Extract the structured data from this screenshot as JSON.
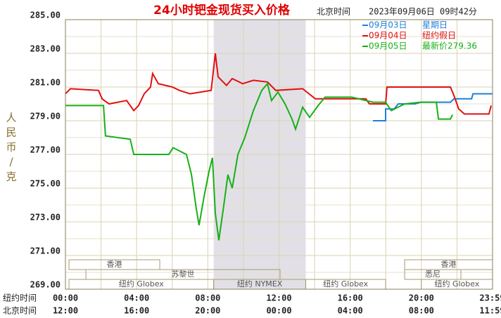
{
  "chart_data": {
    "type": "line",
    "title": "24小时钯金现货买入价格",
    "timezone_label": "北京时间",
    "timestamp": "2023年09月06日 09时42分",
    "y_label": "人民币/克",
    "xlim": [
      0,
      24
    ],
    "ylim": [
      269,
      285
    ],
    "yticks": [
      {
        "value": 269,
        "label": "269.00"
      },
      {
        "value": 271,
        "label": "271.00"
      },
      {
        "value": 273,
        "label": "273.00"
      },
      {
        "value": 275,
        "label": "275.00"
      },
      {
        "value": 277,
        "label": "277.00"
      },
      {
        "value": 279,
        "label": "279.00"
      },
      {
        "value": 281,
        "label": "281.00"
      },
      {
        "value": 283,
        "label": "283.00"
      },
      {
        "value": 285,
        "label": "285.00"
      }
    ],
    "x_axis_rows": [
      {
        "name": "纽约时间",
        "ticks": [
          {
            "value": 0,
            "label": "00:00"
          },
          {
            "value": 4,
            "label": "04:00"
          },
          {
            "value": 8,
            "label": "08:00"
          },
          {
            "value": 12,
            "label": "12:00"
          },
          {
            "value": 16,
            "label": "16:00"
          },
          {
            "value": 20,
            "label": "20:00"
          },
          {
            "value": 23.98,
            "label": "23:59"
          }
        ]
      },
      {
        "name": "北京时间",
        "ticks": [
          {
            "value": 0,
            "label": "12:00"
          },
          {
            "value": 4,
            "label": "16:00"
          },
          {
            "value": 8,
            "label": "20:00"
          },
          {
            "value": 12,
            "label": "00:00"
          },
          {
            "value": 16,
            "label": "04:00"
          },
          {
            "value": 20,
            "label": "08:00"
          },
          {
            "value": 23.98,
            "label": "11:59"
          }
        ]
      }
    ],
    "grid": true,
    "highlight": {
      "start": 8.33,
      "end": 13.5
    },
    "sessions": [
      {
        "label": "香港",
        "start": 0.2,
        "end": 5.3
      },
      {
        "label": "苏黎世",
        "start": 1.15,
        "end": 12.06
      },
      {
        "label": "纽约 Globex",
        "start": 0.2,
        "end": 8.33
      },
      {
        "label": "纽约 NYMEX",
        "start": 8.33,
        "end": 13.5
      },
      {
        "label": "纽约 Globex",
        "start": 13.5,
        "end": 17.99
      },
      {
        "label": "悉尼",
        "start": 19.06,
        "end": 22.22
      },
      {
        "label": "香港",
        "start": 19.06,
        "end": 24
      },
      {
        "label": "纽约 Globex",
        "start": 20.0,
        "end": 24
      }
    ],
    "series": [
      {
        "name": "09月03日",
        "note": "星期日",
        "color": "#1e7fd8",
        "x": [
          17.28,
          17.99,
          17.99,
          18.47,
          18.7,
          19.65,
          19.97,
          21.63,
          21.83,
          22.82,
          22.9,
          24
        ],
        "values": [
          279.0,
          279.0,
          279.7,
          279.7,
          280.0,
          280.0,
          280.1,
          280.1,
          280.3,
          280.3,
          280.6,
          280.6
        ]
      },
      {
        "name": "09月04日",
        "note": "纽约假日",
        "color": "#e01010",
        "x": [
          0,
          0.28,
          1.86,
          2.06,
          2.45,
          3.44,
          3.84,
          4.11,
          4.43,
          4.78,
          4.9,
          5.22,
          6.01,
          6.41,
          7.0,
          8.19,
          8.42,
          8.58,
          9.05,
          9.37,
          9.96,
          10.56,
          11.35,
          11.82,
          13.33,
          14.04,
          16.88,
          17.08,
          17.99,
          18.07,
          21.63,
          21.83,
          22.1,
          22.42,
          23.8,
          23.92
        ],
        "values": [
          280.6,
          280.9,
          280.8,
          280.3,
          280.0,
          280.2,
          279.6,
          279.9,
          280.6,
          281.0,
          281.8,
          281.2,
          281.0,
          280.8,
          280.6,
          280.8,
          283.0,
          281.6,
          281.1,
          281.5,
          281.2,
          281.4,
          281.3,
          280.8,
          280.9,
          280.3,
          280.3,
          280.0,
          280.0,
          281.0,
          281.0,
          280.5,
          279.7,
          279.4,
          279.4,
          279.9
        ]
      },
      {
        "name": "09月05日",
        "note": "最新价279.36",
        "color": "#18b018",
        "x": [
          0,
          2.14,
          2.25,
          3.64,
          3.84,
          5.81,
          6.05,
          6.8,
          7.08,
          7.35,
          7.51,
          7.79,
          8.07,
          8.26,
          8.42,
          8.62,
          8.9,
          9.13,
          9.37,
          9.69,
          10.08,
          10.56,
          11.03,
          11.35,
          11.58,
          11.94,
          12.34,
          12.73,
          12.93,
          13.33,
          13.72,
          14.2,
          14.59,
          16.09,
          17.28,
          17.99,
          18.31,
          19.06,
          19.97,
          20.84,
          20.96,
          21.63,
          21.75
        ],
        "values": [
          279.9,
          279.9,
          278.1,
          277.9,
          277.0,
          277.0,
          277.4,
          277.0,
          275.8,
          273.8,
          272.8,
          274.5,
          276.0,
          276.8,
          273.5,
          271.9,
          274.0,
          275.8,
          275.0,
          277.0,
          278.0,
          279.6,
          280.8,
          281.2,
          280.2,
          280.7,
          280.0,
          279.1,
          278.5,
          279.8,
          279.2,
          279.9,
          280.4,
          280.4,
          280.1,
          280.1,
          279.6,
          280.0,
          280.1,
          280.1,
          279.1,
          279.1,
          279.36
        ]
      }
    ]
  }
}
